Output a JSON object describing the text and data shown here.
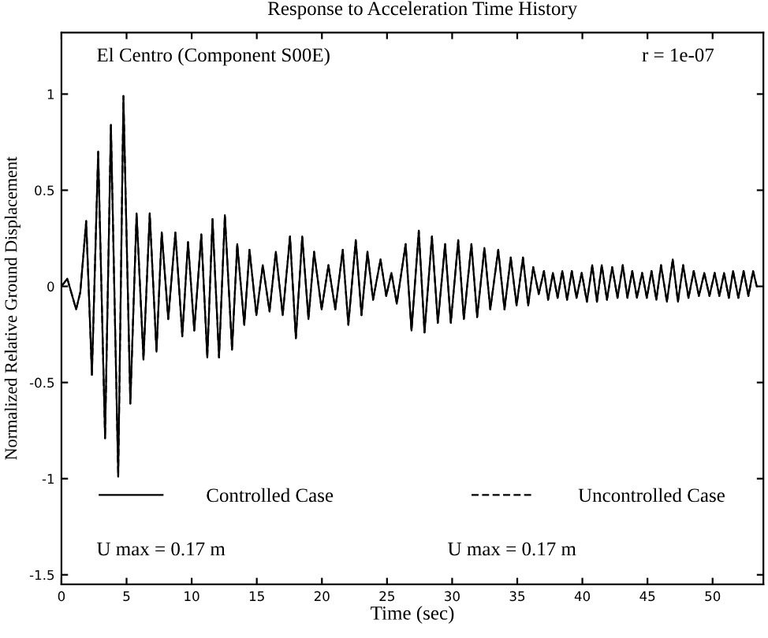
{
  "chart_data": {
    "type": "line",
    "title": "Response to Acceleration Time History",
    "xlabel": "Time (sec)",
    "ylabel": "Normalized Relative Ground Displacement",
    "x": [
      0,
      0.45,
      1.13,
      1.45,
      1.9,
      2.34,
      2.82,
      3.35,
      3.8,
      4.36,
      4.76,
      5.29,
      5.77,
      6.3,
      6.78,
      7.3,
      7.7,
      8.2,
      8.75,
      9.28,
      9.72,
      10.2,
      10.74,
      11.2,
      11.6,
      12.1,
      12.55,
      13.1,
      13.5,
      14.04,
      14.44,
      14.97,
      15.46,
      15.98,
      16.46,
      16.99,
      17.55,
      18.0,
      18.49,
      18.97,
      19.4,
      19.98,
      20.5,
      21.03,
      21.6,
      22.03,
      22.6,
      23.04,
      23.5,
      23.93,
      24.5,
      24.94,
      25.34,
      25.75,
      26.43,
      26.88,
      27.44,
      27.88,
      28.45,
      28.9,
      29.46,
      29.9,
      30.47,
      30.9,
      31.48,
      31.92,
      32.48,
      32.93,
      33.54,
      34.02,
      34.5,
      34.95,
      35.44,
      35.84,
      36.23,
      36.65,
      37.05,
      37.37,
      37.74,
      38.1,
      38.46,
      38.83,
      39.19,
      39.55,
      39.95,
      40.35,
      40.76,
      41.12,
      41.49,
      41.89,
      42.29,
      42.7,
      43.1,
      43.46,
      43.83,
      44.19,
      44.59,
      44.95,
      45.31,
      45.68,
      46.04,
      46.49,
      46.94,
      47.34,
      47.74,
      48.15,
      48.55,
      48.95,
      49.36,
      49.76,
      50.16,
      50.52,
      50.88,
      51.25,
      51.57,
      51.98,
      52.38,
      52.75,
      53.11,
      53.39
    ],
    "series": [
      {
        "name": "Controlled Case",
        "color": "#000000",
        "line_style": "solid",
        "values": [
          0,
          0.04,
          -0.12,
          -0.03,
          0.34,
          -0.46,
          0.7,
          -0.79,
          0.84,
          -0.99,
          0.99,
          -0.61,
          0.38,
          -0.38,
          0.38,
          -0.34,
          0.28,
          -0.17,
          0.28,
          -0.26,
          0.23,
          -0.23,
          0.27,
          -0.37,
          0.35,
          -0.37,
          0.37,
          -0.33,
          0.22,
          -0.2,
          0.19,
          -0.15,
          0.11,
          -0.13,
          0.18,
          -0.15,
          0.26,
          -0.27,
          0.26,
          -0.17,
          0.18,
          -0.12,
          0.11,
          -0.12,
          0.19,
          -0.2,
          0.24,
          -0.15,
          0.18,
          -0.07,
          0.14,
          -0.05,
          0.07,
          -0.09,
          0.22,
          -0.23,
          0.29,
          -0.24,
          0.26,
          -0.19,
          0.22,
          -0.19,
          0.24,
          -0.17,
          0.22,
          -0.16,
          0.2,
          -0.12,
          0.19,
          -0.12,
          0.15,
          -0.1,
          0.15,
          -0.1,
          0.1,
          -0.04,
          0.08,
          -0.07,
          0.07,
          -0.06,
          0.08,
          -0.07,
          0.08,
          -0.06,
          0.07,
          -0.08,
          0.11,
          -0.08,
          0.11,
          -0.07,
          0.1,
          -0.06,
          0.11,
          -0.06,
          0.08,
          -0.06,
          0.07,
          -0.06,
          0.08,
          -0.07,
          0.11,
          -0.08,
          0.14,
          -0.08,
          0.11,
          -0.06,
          0.08,
          -0.05,
          0.07,
          -0.05,
          0.07,
          -0.05,
          0.07,
          -0.06,
          0.08,
          -0.06,
          0.08,
          -0.05,
          0.08,
          0
        ]
      },
      {
        "name": "Uncontrolled Case",
        "color": "#000000",
        "line_style": "dashed",
        "values": [
          0,
          0.04,
          -0.12,
          -0.03,
          0.34,
          -0.46,
          0.7,
          -0.79,
          0.84,
          -0.99,
          0.99,
          -0.61,
          0.38,
          -0.38,
          0.38,
          -0.34,
          0.28,
          -0.17,
          0.28,
          -0.26,
          0.23,
          -0.23,
          0.27,
          -0.37,
          0.35,
          -0.37,
          0.37,
          -0.33,
          0.22,
          -0.2,
          0.19,
          -0.15,
          0.11,
          -0.13,
          0.18,
          -0.15,
          0.26,
          -0.27,
          0.26,
          -0.17,
          0.18,
          -0.12,
          0.11,
          -0.12,
          0.19,
          -0.2,
          0.24,
          -0.15,
          0.18,
          -0.07,
          0.14,
          -0.05,
          0.07,
          -0.09,
          0.22,
          -0.23,
          0.29,
          -0.24,
          0.26,
          -0.19,
          0.22,
          -0.19,
          0.24,
          -0.17,
          0.22,
          -0.16,
          0.2,
          -0.12,
          0.19,
          -0.12,
          0.15,
          -0.1,
          0.15,
          -0.1,
          0.1,
          -0.04,
          0.08,
          -0.07,
          0.07,
          -0.06,
          0.08,
          -0.07,
          0.08,
          -0.06,
          0.07,
          -0.08,
          0.11,
          -0.08,
          0.11,
          -0.07,
          0.1,
          -0.06,
          0.11,
          -0.06,
          0.08,
          -0.06,
          0.07,
          -0.06,
          0.08,
          -0.07,
          0.11,
          -0.08,
          0.14,
          -0.08,
          0.11,
          -0.06,
          0.08,
          -0.05,
          0.07,
          -0.05,
          0.07,
          -0.05,
          0.07,
          -0.06,
          0.08,
          -0.06,
          0.08,
          -0.05,
          0.08,
          0
        ]
      }
    ],
    "xlim": [
      0,
      53.9
    ],
    "xticks": [
      0,
      5,
      10,
      15,
      20,
      25,
      30,
      35,
      40,
      45,
      50
    ],
    "ylim": [
      -1.55,
      1.32
    ],
    "yticks": [
      -1.5,
      -1,
      -0.5,
      0,
      0.5,
      1
    ],
    "grid": false,
    "legend": "bottom",
    "marker": "none",
    "annotations": [
      "El Centro (Component S00E)",
      "r = 1e-07",
      "U max = 0.17 m",
      "U max = 0.17 m"
    ]
  }
}
